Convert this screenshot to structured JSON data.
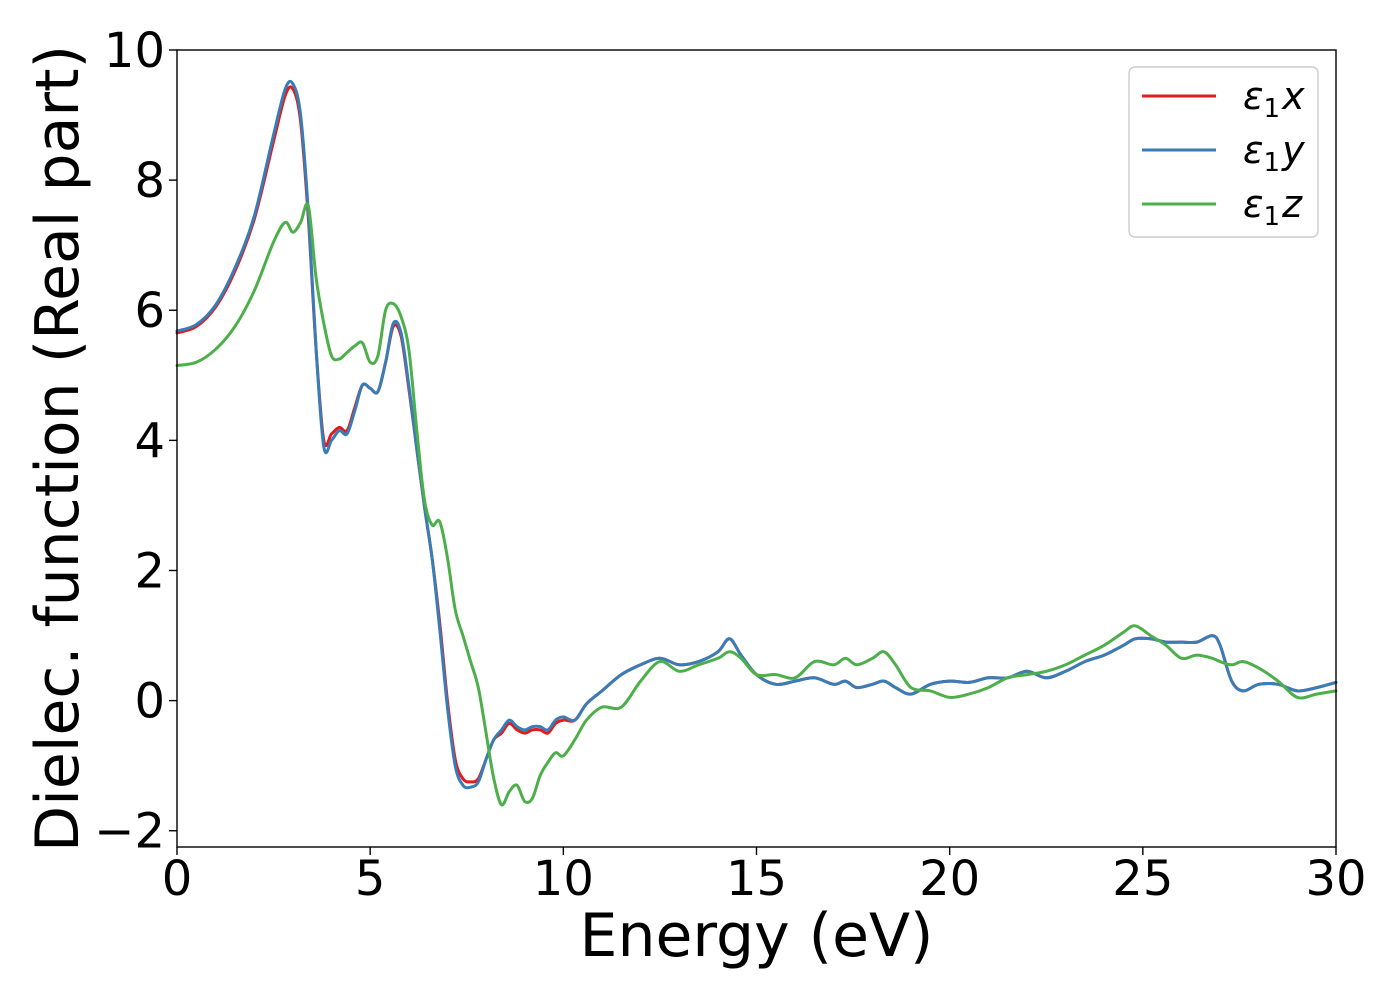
{
  "chart_data": {
    "type": "line",
    "xlabel": "Energy (eV)",
    "ylabel": "Dielec. function (Real part)",
    "xlim": [
      0,
      30
    ],
    "ylim": [
      -2.25,
      10
    ],
    "xticks": [
      0,
      5,
      10,
      15,
      20,
      25,
      30
    ],
    "xtick_labels": [
      "0",
      "5",
      "10",
      "15",
      "20",
      "25",
      "30"
    ],
    "yticks": [
      -2,
      0,
      2,
      4,
      6,
      8,
      10
    ],
    "ytick_labels": [
      "−2",
      "0",
      "2",
      "4",
      "6",
      "8",
      "10"
    ],
    "grid": false,
    "legend_position": "top-right",
    "series": [
      {
        "name": "ε1x",
        "legend_symbol": "ε",
        "legend_sub": "1",
        "legend_var": "x",
        "color": "#e41a1c",
        "x": [
          0,
          0.5,
          1.0,
          1.5,
          2.0,
          2.5,
          2.8,
          3.0,
          3.2,
          3.4,
          3.6,
          3.8,
          4.0,
          4.2,
          4.4,
          4.6,
          4.8,
          5.0,
          5.2,
          5.4,
          5.6,
          5.8,
          6.0,
          6.2,
          6.4,
          6.6,
          6.8,
          7.0,
          7.2,
          7.4,
          7.6,
          7.8,
          8.0,
          8.2,
          8.4,
          8.6,
          8.8,
          9.0,
          9.2,
          9.4,
          9.6,
          9.8,
          10.0,
          10.3,
          10.6,
          11.0,
          11.5,
          12.0,
          12.5,
          13.0,
          13.5,
          14.0,
          14.3,
          14.6,
          15.0,
          15.5,
          16.0,
          16.5,
          17.0,
          17.3,
          17.6,
          18.0,
          18.3,
          18.6,
          19.0,
          19.5,
          20.0,
          20.5,
          21.0,
          21.5,
          22.0,
          22.5,
          23.0,
          23.5,
          24.0,
          24.5,
          24.8,
          25.2,
          25.6,
          26.0,
          26.4,
          26.8,
          27.0,
          27.3,
          27.6,
          28.0,
          28.5,
          29.0,
          29.5,
          30.0
        ],
        "y": [
          5.65,
          5.75,
          6.05,
          6.6,
          7.4,
          8.6,
          9.3,
          9.4,
          8.9,
          7.4,
          5.4,
          4.0,
          4.1,
          4.2,
          4.15,
          4.5,
          4.85,
          4.8,
          4.75,
          5.2,
          5.75,
          5.6,
          4.8,
          3.9,
          3.0,
          2.2,
          1.2,
          0.0,
          -0.9,
          -1.2,
          -1.25,
          -1.2,
          -0.9,
          -0.6,
          -0.5,
          -0.35,
          -0.45,
          -0.5,
          -0.45,
          -0.45,
          -0.5,
          -0.35,
          -0.3,
          -0.3,
          -0.05,
          0.15,
          0.4,
          0.55,
          0.65,
          0.55,
          0.6,
          0.75,
          0.95,
          0.7,
          0.4,
          0.25,
          0.3,
          0.35,
          0.25,
          0.3,
          0.2,
          0.25,
          0.3,
          0.2,
          0.1,
          0.25,
          0.3,
          0.28,
          0.35,
          0.35,
          0.45,
          0.35,
          0.45,
          0.6,
          0.7,
          0.85,
          0.95,
          0.95,
          0.9,
          0.9,
          0.9,
          1.0,
          0.85,
          0.3,
          0.15,
          0.25,
          0.25,
          0.15,
          0.2,
          0.28
        ]
      },
      {
        "name": "ε1y",
        "legend_symbol": "ε",
        "legend_sub": "1",
        "legend_var": "y",
        "color": "#377eb8",
        "x": [
          0,
          0.5,
          1.0,
          1.5,
          2.0,
          2.5,
          2.8,
          3.0,
          3.2,
          3.4,
          3.6,
          3.8,
          4.0,
          4.2,
          4.4,
          4.6,
          4.8,
          5.0,
          5.2,
          5.4,
          5.6,
          5.8,
          6.0,
          6.2,
          6.4,
          6.6,
          6.8,
          7.0,
          7.2,
          7.4,
          7.6,
          7.8,
          8.0,
          8.2,
          8.4,
          8.6,
          8.8,
          9.0,
          9.2,
          9.4,
          9.6,
          9.8,
          10.0,
          10.3,
          10.6,
          11.0,
          11.5,
          12.0,
          12.5,
          13.0,
          13.5,
          14.0,
          14.3,
          14.6,
          15.0,
          15.5,
          16.0,
          16.5,
          17.0,
          17.3,
          17.6,
          18.0,
          18.3,
          18.6,
          19.0,
          19.5,
          20.0,
          20.5,
          21.0,
          21.5,
          22.0,
          22.5,
          23.0,
          23.5,
          24.0,
          24.5,
          24.8,
          25.2,
          25.6,
          26.0,
          26.4,
          26.8,
          27.0,
          27.3,
          27.6,
          28.0,
          28.5,
          29.0,
          29.5,
          30.0
        ],
        "y": [
          5.68,
          5.78,
          6.08,
          6.65,
          7.45,
          8.7,
          9.4,
          9.48,
          9.0,
          7.5,
          5.4,
          3.9,
          4.0,
          4.15,
          4.1,
          4.45,
          4.85,
          4.8,
          4.75,
          5.2,
          5.8,
          5.65,
          4.85,
          3.9,
          3.0,
          2.2,
          1.1,
          -0.1,
          -1.0,
          -1.3,
          -1.33,
          -1.25,
          -0.9,
          -0.6,
          -0.45,
          -0.3,
          -0.4,
          -0.45,
          -0.4,
          -0.4,
          -0.45,
          -0.3,
          -0.25,
          -0.3,
          -0.05,
          0.15,
          0.4,
          0.55,
          0.65,
          0.55,
          0.6,
          0.75,
          0.95,
          0.7,
          0.4,
          0.25,
          0.3,
          0.35,
          0.25,
          0.3,
          0.2,
          0.25,
          0.3,
          0.2,
          0.1,
          0.25,
          0.3,
          0.28,
          0.35,
          0.35,
          0.45,
          0.35,
          0.45,
          0.6,
          0.7,
          0.85,
          0.95,
          0.95,
          0.9,
          0.9,
          0.9,
          1.0,
          0.85,
          0.3,
          0.15,
          0.25,
          0.25,
          0.15,
          0.2,
          0.28
        ]
      },
      {
        "name": "ε1z",
        "legend_symbol": "ε",
        "legend_sub": "1",
        "legend_var": "z",
        "color": "#4daf4a",
        "x": [
          0,
          0.5,
          1.0,
          1.5,
          2.0,
          2.5,
          2.8,
          3.0,
          3.2,
          3.4,
          3.6,
          3.8,
          4.0,
          4.2,
          4.4,
          4.6,
          4.8,
          5.0,
          5.2,
          5.4,
          5.6,
          5.8,
          6.0,
          6.2,
          6.4,
          6.6,
          6.8,
          7.0,
          7.2,
          7.4,
          7.6,
          7.8,
          8.0,
          8.2,
          8.4,
          8.6,
          8.8,
          9.0,
          9.2,
          9.4,
          9.6,
          9.8,
          10.0,
          10.3,
          10.6,
          11.0,
          11.5,
          12.0,
          12.5,
          13.0,
          13.5,
          14.0,
          14.3,
          14.6,
          15.0,
          15.5,
          16.0,
          16.5,
          17.0,
          17.3,
          17.6,
          18.0,
          18.3,
          18.6,
          19.0,
          19.5,
          20.0,
          20.5,
          21.0,
          21.5,
          22.0,
          22.5,
          23.0,
          23.5,
          24.0,
          24.5,
          24.8,
          25.2,
          25.6,
          26.0,
          26.4,
          26.8,
          27.0,
          27.3,
          27.6,
          28.0,
          28.5,
          29.0,
          29.5,
          30.0
        ],
        "y": [
          5.15,
          5.2,
          5.4,
          5.75,
          6.3,
          7.05,
          7.35,
          7.2,
          7.35,
          7.6,
          6.5,
          5.8,
          5.3,
          5.25,
          5.35,
          5.45,
          5.5,
          5.2,
          5.3,
          6.0,
          6.1,
          5.9,
          5.4,
          4.2,
          3.1,
          2.7,
          2.75,
          2.2,
          1.4,
          1.0,
          0.6,
          0.2,
          -0.5,
          -1.2,
          -1.6,
          -1.4,
          -1.3,
          -1.55,
          -1.5,
          -1.15,
          -0.95,
          -0.8,
          -0.85,
          -0.6,
          -0.3,
          -0.1,
          -0.1,
          0.3,
          0.6,
          0.45,
          0.55,
          0.65,
          0.75,
          0.65,
          0.4,
          0.4,
          0.35,
          0.6,
          0.55,
          0.65,
          0.55,
          0.65,
          0.75,
          0.55,
          0.2,
          0.15,
          0.05,
          0.1,
          0.2,
          0.35,
          0.4,
          0.45,
          0.55,
          0.7,
          0.85,
          1.05,
          1.15,
          1.0,
          0.85,
          0.65,
          0.7,
          0.65,
          0.6,
          0.55,
          0.6,
          0.5,
          0.3,
          0.05,
          0.1,
          0.15
        ]
      }
    ]
  }
}
